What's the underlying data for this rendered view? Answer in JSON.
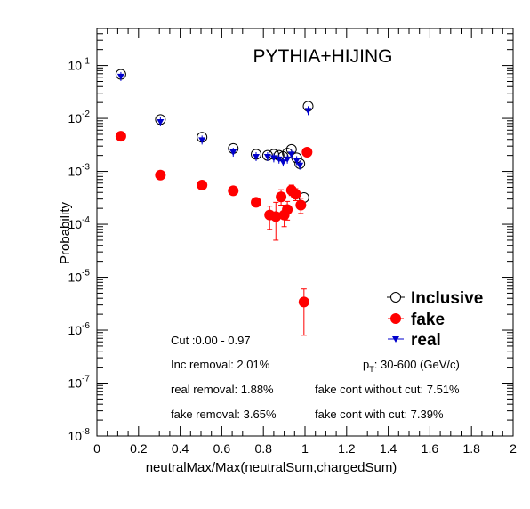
{
  "chart_data": {
    "type": "scatter",
    "title": "PYTHIA+HIJING",
    "xlabel": "neutralMax/Max(neutralSum,chargedSum)",
    "ylabel": "Probability",
    "xlim": [
      0,
      2
    ],
    "ylim": [
      1e-08,
      0.5
    ],
    "yscale": "log",
    "grid": false,
    "legend_position": "bottom-right",
    "x_ticks": [
      {
        "v": 0,
        "label": "0"
      },
      {
        "v": 0.2,
        "label": "0.2"
      },
      {
        "v": 0.4,
        "label": "0.4"
      },
      {
        "v": 0.6,
        "label": "0.6"
      },
      {
        "v": 0.8,
        "label": "0.8"
      },
      {
        "v": 1,
        "label": "1"
      },
      {
        "v": 1.2,
        "label": "1.2"
      },
      {
        "v": 1.4,
        "label": "1.4"
      },
      {
        "v": 1.6,
        "label": "1.6"
      },
      {
        "v": 1.8,
        "label": "1.8"
      },
      {
        "v": 2,
        "label": "2"
      }
    ],
    "y_ticks": [
      {
        "v": 1e-08,
        "base": "10",
        "exp": "-8"
      },
      {
        "v": 1e-07,
        "base": "10",
        "exp": "-7"
      },
      {
        "v": 1e-06,
        "base": "10",
        "exp": "-6"
      },
      {
        "v": 1e-05,
        "base": "10",
        "exp": "-5"
      },
      {
        "v": 0.0001,
        "base": "10",
        "exp": "-4"
      },
      {
        "v": 0.001,
        "base": "10",
        "exp": "-3"
      },
      {
        "v": 0.01,
        "base": "10",
        "exp": "-2"
      },
      {
        "v": 0.1,
        "base": "10",
        "exp": "-1"
      }
    ],
    "series": [
      {
        "name": "Inclusive",
        "color": "#000000",
        "marker": "open-circle",
        "x": [
          0.115,
          0.305,
          0.505,
          0.655,
          0.765,
          0.82,
          0.85,
          0.875,
          0.895,
          0.915,
          0.935,
          0.96,
          0.975,
          0.995,
          1.015
        ],
        "y": [
          0.068,
          0.0095,
          0.0044,
          0.0027,
          0.0021,
          0.002,
          0.0021,
          0.002,
          0.0019,
          0.0022,
          0.0026,
          0.0018,
          0.0014,
          0.00032,
          0.017
        ]
      },
      {
        "name": "fake",
        "color": "#ff0000",
        "marker": "filled-circle",
        "x": [
          0.115,
          0.305,
          0.505,
          0.655,
          0.765,
          0.83,
          0.86,
          0.885,
          0.9,
          0.915,
          0.935,
          0.955,
          0.98,
          0.995,
          1.01
        ],
        "y": [
          0.0046,
          0.00085,
          0.00055,
          0.00043,
          0.00026,
          0.00015,
          0.00014,
          0.00033,
          0.00015,
          0.00019,
          0.00044,
          0.00037,
          0.00023,
          3.4e-06,
          0.0023
        ],
        "err_low": [
          0.0002,
          5e-05,
          4e-05,
          4e-05,
          4e-05,
          7e-05,
          9e-05,
          0.0001,
          6e-05,
          7e-05,
          9e-05,
          9e-05,
          7e-05,
          2.6e-06,
          0.0003
        ],
        "err_high": [
          0.0002,
          5e-05,
          4e-05,
          4e-05,
          4e-05,
          7e-05,
          0.00012,
          0.00012,
          8e-05,
          8e-05,
          0.00011,
          0.0001,
          8e-05,
          2.6e-06,
          0.0003
        ]
      },
      {
        "name": "real",
        "color": "#0000cc",
        "marker": "down-triangle",
        "x": [
          0.115,
          0.305,
          0.505,
          0.655,
          0.765,
          0.82,
          0.85,
          0.875,
          0.895,
          0.915,
          0.935,
          0.96,
          0.975,
          1.015
        ],
        "y": [
          0.062,
          0.0086,
          0.0039,
          0.0023,
          0.0019,
          0.0019,
          0.0018,
          0.0017,
          0.0015,
          0.0017,
          0.0021,
          0.0016,
          0.0013,
          0.014
        ]
      }
    ],
    "annotations": {
      "cut": "Cut :0.00 - 0.97",
      "inc_removal": "Inc removal: 2.01%",
      "real_removal": "real removal: 1.88%",
      "fake_removal": "fake removal: 3.65%",
      "pt_p": "p",
      "pt_sub": "T",
      "pt_range": ": 30-600 (GeV/c)",
      "fake_cont_without": "fake cont without cut: 7.51%",
      "fake_cont_with": "fake cont with cut: 7.39%"
    }
  }
}
